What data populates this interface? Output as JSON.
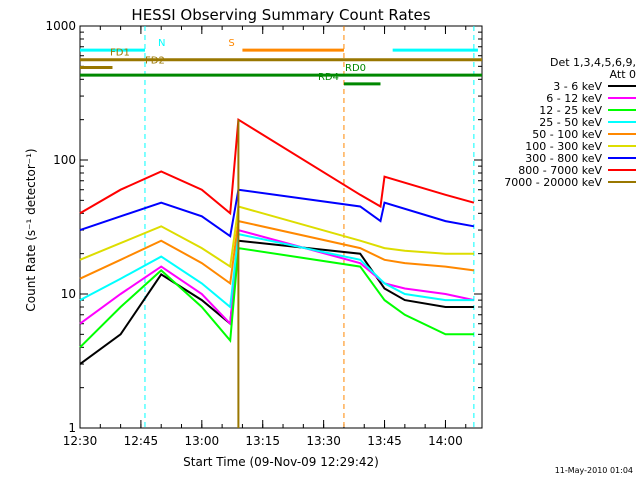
{
  "chart_data": {
    "type": "line",
    "title": "HESSI Observing Summary Count Rates",
    "xlabel": "Start Time (09-Nov-09 12:29:42)",
    "ylabel": "Count Rate (s⁻¹ detector⁻¹)",
    "y_scale": "log",
    "ylim": [
      1,
      1000
    ],
    "xlim": [
      "12:30",
      "14:09"
    ],
    "x_ticks": [
      "12:30",
      "12:45",
      "13:00",
      "13:15",
      "13:30",
      "13:45",
      "14:00"
    ],
    "y_ticks": [
      "1",
      "10",
      "100",
      "1000"
    ],
    "legend_title": [
      "Det 1,3,4,5,6,9,",
      "Att 0"
    ],
    "legend_position": "right",
    "footer": "11-May-2010 01:04",
    "series": [
      {
        "name": "3 - 6 keV",
        "color": "#000000",
        "x": [
          "12:30",
          "12:40",
          "12:50",
          "13:00",
          "13:07",
          "13:09",
          "13:39",
          "13:45",
          "13:50",
          "14:00",
          "14:07"
        ],
        "y": [
          3,
          5,
          14,
          9,
          6,
          25,
          20,
          11,
          9,
          8,
          8
        ]
      },
      {
        "name": "6 - 12 keV",
        "color": "#ff00ff",
        "x": [
          "12:30",
          "12:40",
          "12:50",
          "13:00",
          "13:07",
          "13:09",
          "13:39",
          "13:45",
          "13:50",
          "14:00",
          "14:07"
        ],
        "y": [
          6,
          10,
          16,
          10,
          6,
          30,
          17,
          12,
          11,
          10,
          9
        ]
      },
      {
        "name": "12 - 25 keV",
        "color": "#00ff00",
        "x": [
          "12:30",
          "12:40",
          "12:50",
          "13:00",
          "13:07",
          "13:09",
          "13:39",
          "13:45",
          "13:50",
          "14:00",
          "14:07"
        ],
        "y": [
          4,
          8,
          15,
          8,
          4.5,
          22,
          16,
          9,
          7,
          5,
          5
        ]
      },
      {
        "name": "25 - 50 keV",
        "color": "#00ffff",
        "x": [
          "12:30",
          "12:40",
          "12:50",
          "13:00",
          "13:07",
          "13:09",
          "13:39",
          "13:45",
          "13:50",
          "14:00",
          "14:07"
        ],
        "y": [
          9,
          13,
          19,
          12,
          8,
          28,
          18,
          12,
          10,
          9,
          9
        ]
      },
      {
        "name": "50 - 100 keV",
        "color": "#ff8800",
        "x": [
          "12:30",
          "12:40",
          "12:50",
          "13:00",
          "13:07",
          "13:09",
          "13:39",
          "13:45",
          "13:50",
          "14:00",
          "14:07"
        ],
        "y": [
          13,
          18,
          25,
          17,
          12,
          35,
          22,
          18,
          17,
          16,
          15
        ]
      },
      {
        "name": "100 - 300 keV",
        "color": "#dddd00",
        "x": [
          "12:30",
          "12:40",
          "12:50",
          "13:00",
          "13:07",
          "13:09",
          "13:39",
          "13:45",
          "13:50",
          "14:00",
          "14:07"
        ],
        "y": [
          18,
          24,
          32,
          22,
          16,
          45,
          25,
          22,
          21,
          20,
          20
        ]
      },
      {
        "name": "300 - 800 keV",
        "color": "#0000ff",
        "x": [
          "12:30",
          "12:40",
          "12:50",
          "13:00",
          "13:07",
          "13:09",
          "13:39",
          "13:44",
          "13:45",
          "14:00",
          "14:07"
        ],
        "y": [
          30,
          38,
          48,
          38,
          27,
          60,
          45,
          35,
          48,
          35,
          32
        ]
      },
      {
        "name": "800 - 7000 keV",
        "color": "#ff0000",
        "x": [
          "12:30",
          "12:40",
          "12:50",
          "13:00",
          "13:07",
          "13:09",
          "13:39",
          "13:44",
          "13:45",
          "14:00",
          "14:07"
        ],
        "y": [
          40,
          60,
          82,
          60,
          40,
          200,
          55,
          45,
          75,
          55,
          48
        ]
      },
      {
        "name": "7000 - 20000 keV",
        "color": "#997700",
        "x": [
          "13:09",
          "13:09"
        ],
        "y": [
          1,
          200
        ]
      }
    ],
    "annotations": [
      {
        "label": "N",
        "color": "#00ffff",
        "x": [
          "12:30",
          "12:46"
        ],
        "y": 660,
        "dashed_at": [
          "12:46",
          "14:07"
        ],
        "bar2": [
          "13:47",
          "14:08"
        ]
      },
      {
        "label": "S",
        "color": "#ff8800",
        "x": [
          "13:10",
          "13:35"
        ],
        "y": 660,
        "dashed_at": [
          "13:35"
        ]
      },
      {
        "label": "FD1",
        "color": "#997700",
        "x": [
          "12:30",
          "14:09"
        ],
        "y": 560
      },
      {
        "label": "FD2",
        "color": "#997700",
        "x": [
          "12:30",
          "12:38"
        ],
        "y": 490
      },
      {
        "label": "RD0",
        "color": "#008800",
        "x": [
          "12:30",
          "14:09"
        ],
        "y": 430
      },
      {
        "label": "RD4",
        "color": "#008800",
        "x": [
          "13:35",
          "13:44"
        ],
        "y": 370
      }
    ]
  }
}
